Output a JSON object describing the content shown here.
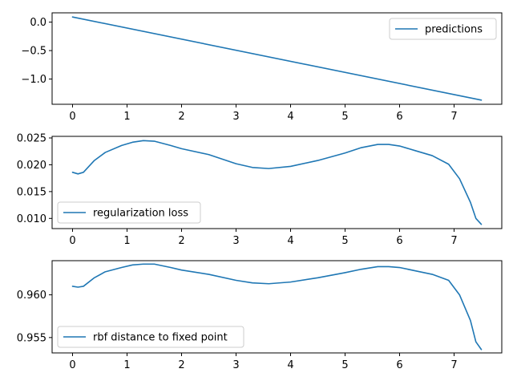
{
  "chart_data": [
    {
      "type": "line",
      "x": [
        0,
        7.5
      ],
      "series": [
        {
          "name": "predictions",
          "color": "#1f77b4",
          "points": [
            [
              0,
              0.09
            ],
            [
              7.5,
              -1.37
            ]
          ]
        }
      ],
      "xlim": [
        -0.375,
        7.875
      ],
      "ylim": [
        -1.443,
        0.163
      ],
      "xticks": [
        0,
        1,
        2,
        3,
        4,
        5,
        6,
        7
      ],
      "xtick_labels": [
        "0",
        "1",
        "2",
        "3",
        "4",
        "5",
        "6",
        "7"
      ],
      "yticks": [
        0.0,
        -0.5,
        -1.0
      ],
      "ytick_labels": [
        "0.0",
        "−0.5",
        "−1.0"
      ],
      "legend": "top-right",
      "grid": false
    },
    {
      "type": "line",
      "series": [
        {
          "name": "regularization loss",
          "color": "#1f77b4",
          "points": [
            [
              0,
              0.0186
            ],
            [
              0.1,
              0.0183
            ],
            [
              0.2,
              0.0186
            ],
            [
              0.4,
              0.0208
            ],
            [
              0.6,
              0.0223
            ],
            [
              0.9,
              0.0236
            ],
            [
              1.1,
              0.0242
            ],
            [
              1.3,
              0.0245
            ],
            [
              1.5,
              0.0244
            ],
            [
              1.8,
              0.0236
            ],
            [
              2.0,
              0.023
            ],
            [
              2.5,
              0.0219
            ],
            [
              3.0,
              0.0202
            ],
            [
              3.3,
              0.0195
            ],
            [
              3.6,
              0.0193
            ],
            [
              4.0,
              0.0197
            ],
            [
              4.5,
              0.0208
            ],
            [
              5.0,
              0.0222
            ],
            [
              5.3,
              0.0232
            ],
            [
              5.6,
              0.0238
            ],
            [
              5.8,
              0.0238
            ],
            [
              6.0,
              0.0235
            ],
            [
              6.3,
              0.0226
            ],
            [
              6.6,
              0.0217
            ],
            [
              6.9,
              0.0201
            ],
            [
              7.1,
              0.0174
            ],
            [
              7.3,
              0.013
            ],
            [
              7.4,
              0.01
            ],
            [
              7.5,
              0.0089
            ]
          ]
        }
      ],
      "xlim": [
        -0.375,
        7.875
      ],
      "ylim": [
        0.0081,
        0.0253
      ],
      "xticks": [
        0,
        1,
        2,
        3,
        4,
        5,
        6,
        7
      ],
      "xtick_labels": [
        "0",
        "1",
        "2",
        "3",
        "4",
        "5",
        "6",
        "7"
      ],
      "yticks": [
        0.01,
        0.015,
        0.02,
        0.025
      ],
      "ytick_labels": [
        "0.010",
        "0.015",
        "0.020",
        "0.025"
      ],
      "legend": "lower-left",
      "grid": false
    },
    {
      "type": "line",
      "series": [
        {
          "name": "rbf distance to fixed point",
          "color": "#1f77b4",
          "points": [
            [
              0,
              0.961
            ],
            [
              0.1,
              0.9609
            ],
            [
              0.2,
              0.961
            ],
            [
              0.4,
              0.962
            ],
            [
              0.6,
              0.9627
            ],
            [
              0.9,
              0.9632
            ],
            [
              1.1,
              0.9635
            ],
            [
              1.3,
              0.9636
            ],
            [
              1.5,
              0.9636
            ],
            [
              1.8,
              0.9632
            ],
            [
              2.0,
              0.9629
            ],
            [
              2.5,
              0.9624
            ],
            [
              3.0,
              0.9617
            ],
            [
              3.3,
              0.9614
            ],
            [
              3.6,
              0.9613
            ],
            [
              4.0,
              0.9615
            ],
            [
              4.5,
              0.962
            ],
            [
              5.0,
              0.9626
            ],
            [
              5.3,
              0.963
            ],
            [
              5.6,
              0.9633
            ],
            [
              5.8,
              0.9633
            ],
            [
              6.0,
              0.9632
            ],
            [
              6.3,
              0.9628
            ],
            [
              6.6,
              0.9624
            ],
            [
              6.9,
              0.9617
            ],
            [
              7.1,
              0.96
            ],
            [
              7.3,
              0.957
            ],
            [
              7.4,
              0.9545
            ],
            [
              7.5,
              0.9536
            ]
          ]
        }
      ],
      "xlim": [
        -0.375,
        7.875
      ],
      "ylim": [
        0.9532,
        0.964
      ],
      "xticks": [
        0,
        1,
        2,
        3,
        4,
        5,
        6,
        7
      ],
      "xtick_labels": [
        "0",
        "1",
        "2",
        "3",
        "4",
        "5",
        "6",
        "7"
      ],
      "yticks": [
        0.955,
        0.96
      ],
      "ytick_labels": [
        "0.955",
        "0.960"
      ],
      "legend": "lower-left",
      "grid": false
    }
  ]
}
